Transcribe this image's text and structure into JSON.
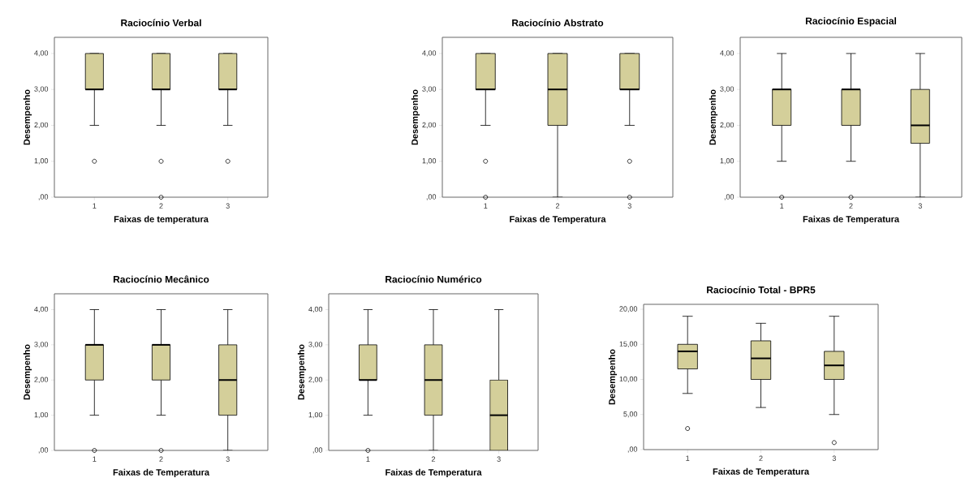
{
  "chart_data": [
    {
      "type": "box",
      "title": "Raciocínio Verbal",
      "xlabel": "Faixas de temperatura",
      "ylabel": "Desempenho",
      "categories": [
        "1",
        "2",
        "3"
      ],
      "color": "#d4cf9a",
      "grid": false,
      "ylim": [
        0,
        4.45
      ],
      "yticks": [
        {
          "value": 0,
          "label": ",00"
        },
        {
          "value": 1,
          "label": "1,00"
        },
        {
          "value": 2,
          "label": "2,00"
        },
        {
          "value": 3,
          "label": "3,00"
        },
        {
          "value": 4,
          "label": "4,00"
        }
      ],
      "boxes": [
        {
          "low": 2,
          "q1": 3,
          "median": 3,
          "q3": 4,
          "high": 4,
          "outliers": [
            1
          ]
        },
        {
          "low": 2,
          "q1": 3,
          "median": 3,
          "q3": 4,
          "high": 4,
          "outliers": [
            1,
            0
          ]
        },
        {
          "low": 2,
          "q1": 3,
          "median": 3,
          "q3": 4,
          "high": 4,
          "outliers": [
            1
          ]
        }
      ]
    },
    {
      "type": "box",
      "title": "Raciocínio Abstrato",
      "xlabel": "Faixas de Temperatura",
      "ylabel": "Desempenho",
      "categories": [
        "1",
        "2",
        "3"
      ],
      "color": "#d4cf9a",
      "grid": false,
      "ylim": [
        0,
        4.45
      ],
      "yticks": [
        {
          "value": 0,
          "label": ",00"
        },
        {
          "value": 1,
          "label": "1,00"
        },
        {
          "value": 2,
          "label": "2,00"
        },
        {
          "value": 3,
          "label": "3,00"
        },
        {
          "value": 4,
          "label": "4,00"
        }
      ],
      "boxes": [
        {
          "low": 2,
          "q1": 3,
          "median": 3,
          "q3": 4,
          "high": 4,
          "outliers": [
            1,
            0
          ]
        },
        {
          "low": 0,
          "q1": 2,
          "median": 3,
          "q3": 4,
          "high": 4
        },
        {
          "low": 2,
          "q1": 3,
          "median": 3,
          "q3": 4,
          "high": 4,
          "outliers": [
            1,
            0
          ]
        }
      ]
    },
    {
      "type": "box",
      "title": "Raciocínio Espacial",
      "xlabel": "Faixas de Temperatura",
      "ylabel": "Desempenho",
      "categories": [
        "1",
        "2",
        "3"
      ],
      "color": "#d4cf9a",
      "grid": false,
      "ylim": [
        0,
        4.45
      ],
      "yticks": [
        {
          "value": 0,
          "label": ",00"
        },
        {
          "value": 1,
          "label": "1,00"
        },
        {
          "value": 2,
          "label": "2,00"
        },
        {
          "value": 3,
          "label": "3,00"
        },
        {
          "value": 4,
          "label": "4,00"
        }
      ],
      "boxes": [
        {
          "low": 1,
          "q1": 2,
          "median": 3,
          "q3": 3,
          "high": 4,
          "outliers": [
            0
          ]
        },
        {
          "low": 1,
          "q1": 2,
          "median": 3,
          "q3": 3,
          "high": 4,
          "outliers": [
            0
          ]
        },
        {
          "low": 0,
          "q1": 1.5,
          "median": 2,
          "q3": 3,
          "high": 4
        }
      ]
    },
    {
      "type": "box",
      "title": "Raciocínio Mecânico",
      "xlabel": "Faixas de Temperatura",
      "ylabel": "Desempenho",
      "categories": [
        "1",
        "2",
        "3"
      ],
      "color": "#d4cf9a",
      "grid": false,
      "ylim": [
        0,
        4.45
      ],
      "yticks": [
        {
          "value": 0,
          "label": ",00"
        },
        {
          "value": 1,
          "label": "1,00"
        },
        {
          "value": 2,
          "label": "2,00"
        },
        {
          "value": 3,
          "label": "3,00"
        },
        {
          "value": 4,
          "label": "4,00"
        }
      ],
      "boxes": [
        {
          "low": 1,
          "q1": 2,
          "median": 3,
          "q3": 3,
          "high": 4,
          "outliers": [
            0
          ]
        },
        {
          "low": 1,
          "q1": 2,
          "median": 3,
          "q3": 3,
          "high": 4,
          "outliers": [
            0
          ]
        },
        {
          "low": 0,
          "q1": 1,
          "median": 2,
          "q3": 3,
          "high": 4
        }
      ]
    },
    {
      "type": "box",
      "title": "Raciocínio Numérico",
      "xlabel": "Faixas de Temperatura",
      "ylabel": "Desempenho",
      "categories": [
        "1",
        "2",
        "3"
      ],
      "color": "#d4cf9a",
      "grid": false,
      "ylim": [
        0,
        4.45
      ],
      "yticks": [
        {
          "value": 0,
          "label": ",00"
        },
        {
          "value": 1,
          "label": "1,00"
        },
        {
          "value": 2,
          "label": "2,00"
        },
        {
          "value": 3,
          "label": "3,00"
        },
        {
          "value": 4,
          "label": "4,00"
        }
      ],
      "boxes": [
        {
          "low": 1,
          "q1": 2,
          "median": 2,
          "q3": 3,
          "high": 4,
          "outliers": [
            0
          ]
        },
        {
          "low": 0,
          "q1": 1,
          "median": 2,
          "q3": 3,
          "high": 4
        },
        {
          "low": 0,
          "q1": 0,
          "median": 1,
          "q3": 2,
          "high": 4
        }
      ]
    },
    {
      "type": "box",
      "title": "Raciocínio Total - BPR5",
      "xlabel": "Faixas de Temperatura",
      "ylabel": "Desempenho",
      "categories": [
        "1",
        "2",
        "3"
      ],
      "color": "#d4cf9a",
      "grid": false,
      "ylim": [
        0,
        20.7
      ],
      "yticks": [
        {
          "value": 0,
          "label": ",00"
        },
        {
          "value": 5,
          "label": "5,00"
        },
        {
          "value": 10,
          "label": "10,00"
        },
        {
          "value": 15,
          "label": "15,00"
        },
        {
          "value": 20,
          "label": "20,00"
        }
      ],
      "boxes": [
        {
          "low": 8,
          "q1": 11.5,
          "median": 14,
          "q3": 15,
          "high": 19,
          "outliers": [
            3
          ]
        },
        {
          "low": 6,
          "q1": 10,
          "median": 13,
          "q3": 15.5,
          "high": 18
        },
        {
          "low": 5,
          "q1": 10,
          "median": 12,
          "q3": 14,
          "high": 19,
          "outliers": [
            1
          ]
        }
      ]
    }
  ]
}
